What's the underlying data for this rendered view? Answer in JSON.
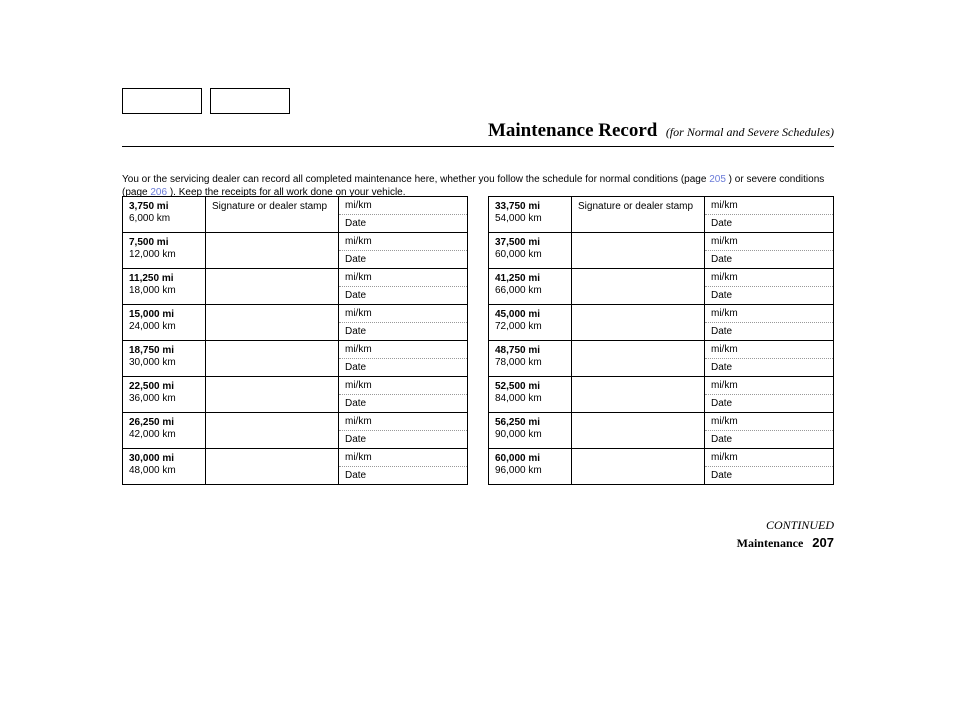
{
  "title": {
    "main": "Maintenance Record",
    "sub": "(for Normal and Severe Schedules)"
  },
  "intro": {
    "prefix": "You or the servicing dealer can record all completed maintenance here, whether you follow the schedule for normal conditions (page ",
    "link1": "205",
    "mid": " ) or severe conditions (page ",
    "link2": "206",
    "suffix": " ). Keep the receipts for all work done on your vehicle."
  },
  "headers": {
    "stamp": "Signature or dealer stamp",
    "mikm": "mi/km",
    "date": "Date"
  },
  "left": [
    {
      "mi": "3,750 mi",
      "km": "6,000 km"
    },
    {
      "mi": "7,500 mi",
      "km": "12,000 km"
    },
    {
      "mi": "11,250 mi",
      "km": "18,000 km"
    },
    {
      "mi": "15,000 mi",
      "km": "24,000 km"
    },
    {
      "mi": "18,750 mi",
      "km": "30,000 km"
    },
    {
      "mi": "22,500 mi",
      "km": "36,000 km"
    },
    {
      "mi": "26,250 mi",
      "km": "42,000 km"
    },
    {
      "mi": "30,000 mi",
      "km": "48,000 km"
    }
  ],
  "right": [
    {
      "mi": "33,750 mi",
      "km": "54,000 km"
    },
    {
      "mi": "37,500 mi",
      "km": "60,000 km"
    },
    {
      "mi": "41,250 mi",
      "km": "66,000 km"
    },
    {
      "mi": "45,000 mi",
      "km": "72,000 km"
    },
    {
      "mi": "48,750 mi",
      "km": "78,000 km"
    },
    {
      "mi": "52,500 mi",
      "km": "84,000 km"
    },
    {
      "mi": "56,250 mi",
      "km": "90,000 km"
    },
    {
      "mi": "60,000 mi",
      "km": "96,000 km"
    }
  ],
  "footer": {
    "continued": "CONTINUED",
    "label": "Maintenance",
    "page": "207"
  }
}
